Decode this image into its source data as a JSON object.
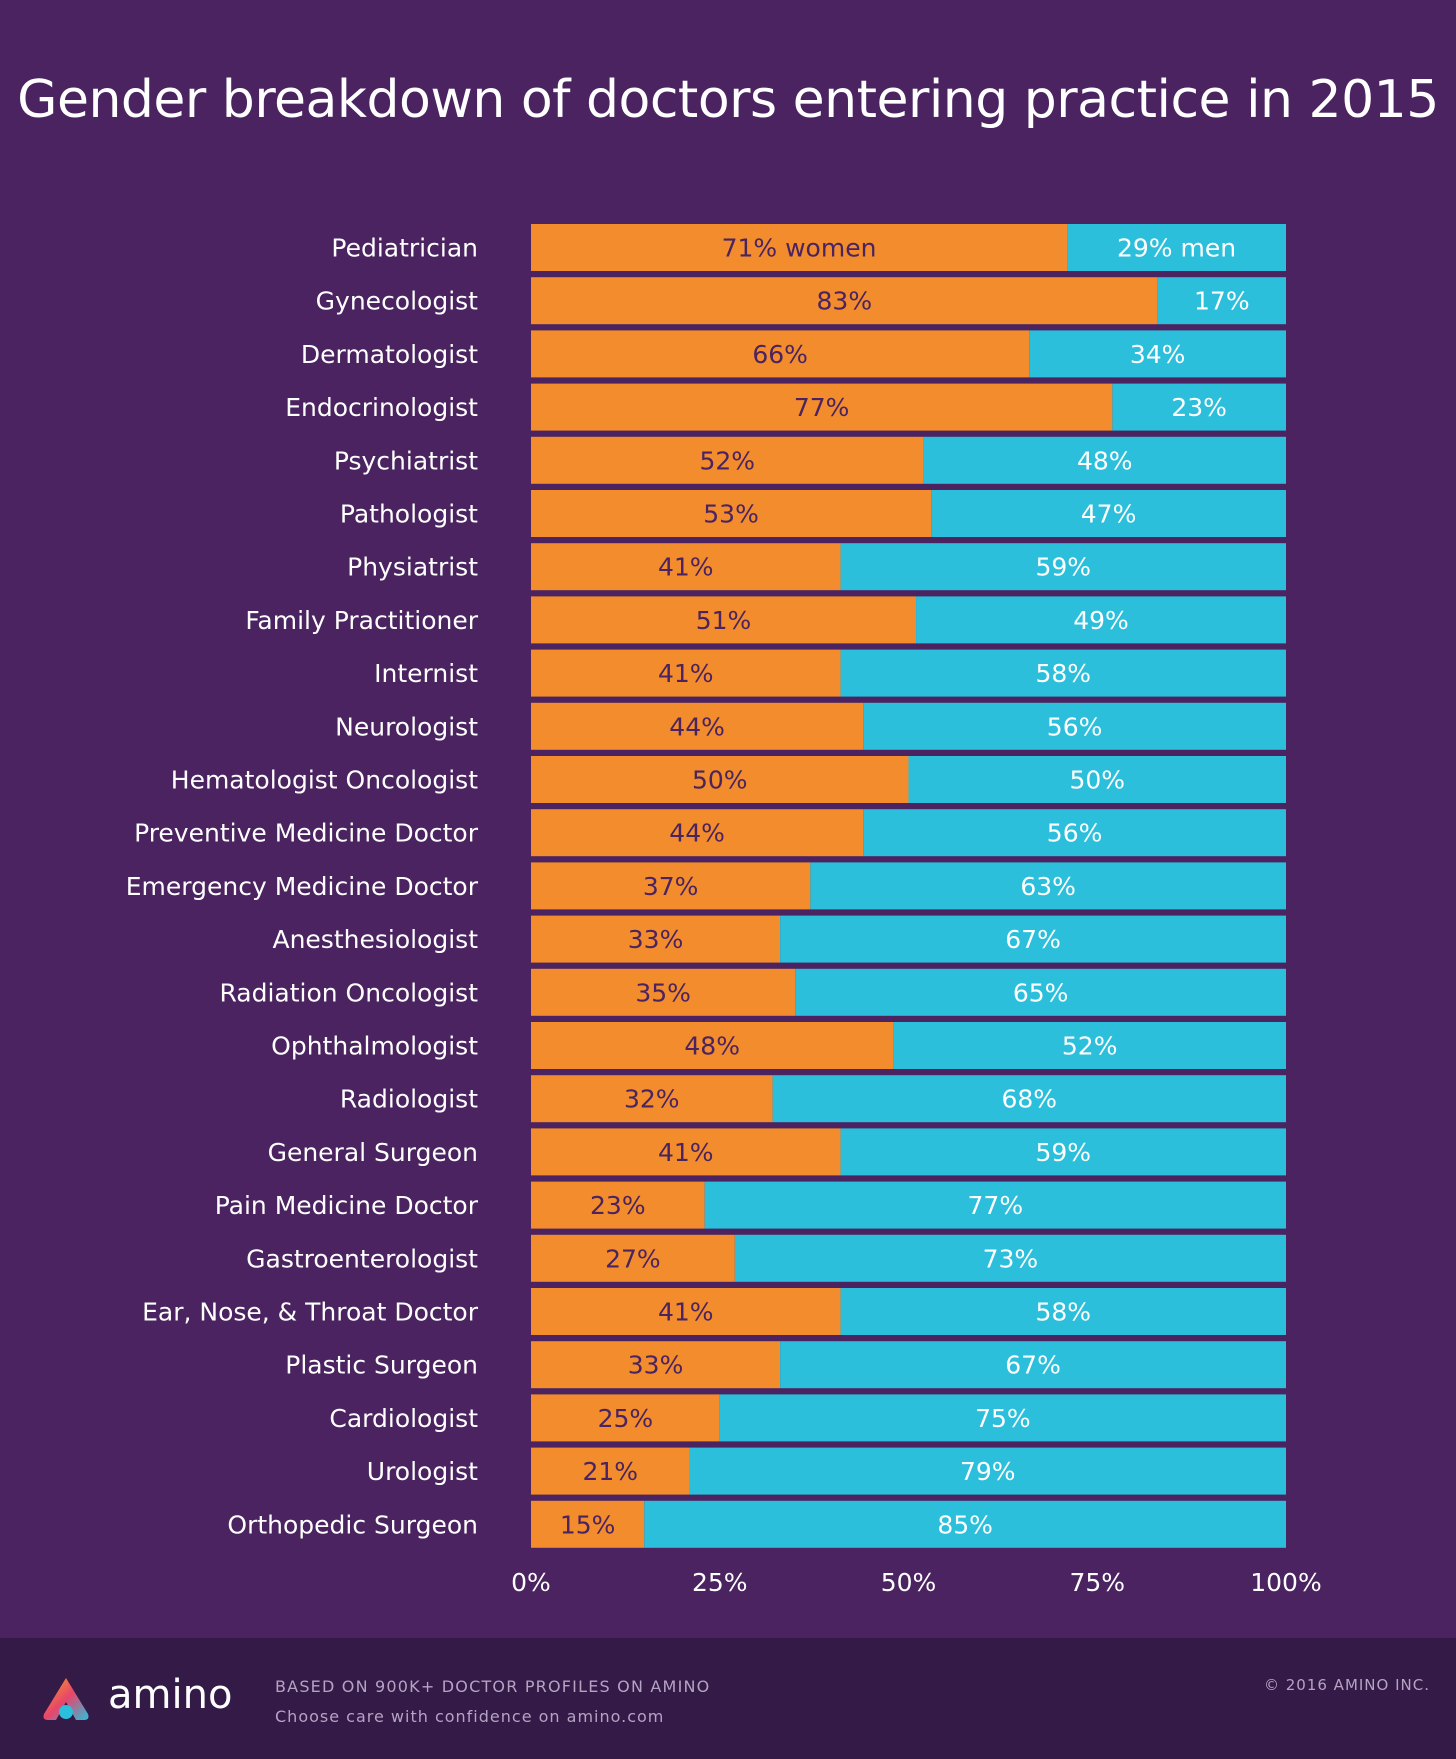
{
  "title": "Gender breakdown of doctors entering practice in 2015",
  "colors": {
    "background": "#4a2360",
    "women": "#f28c2c",
    "men": "#2bbfdc",
    "footer": "#331a47"
  },
  "chart_data": {
    "type": "bar",
    "orientation": "horizontal",
    "stacked": true,
    "title": "Gender breakdown of doctors entering practice in 2015",
    "categories": [
      "Pediatrician",
      "Gynecologist",
      "Dermatologist",
      "Endocrinologist",
      "Psychiatrist",
      "Pathologist",
      "Physiatrist",
      "Family Practitioner",
      "Internist",
      "Neurologist",
      "Hematologist Oncologist",
      "Preventive Medicine Doctor",
      "Emergency Medicine Doctor",
      "Anesthesiologist",
      "Radiation Oncologist",
      "Ophthalmologist",
      "Radiologist",
      "General Surgeon",
      "Pain Medicine Doctor",
      "Gastroenterologist",
      "Ear, Nose, & Throat Doctor",
      "Plastic Surgeon",
      "Cardiologist",
      "Urologist",
      "Orthopedic Surgeon"
    ],
    "series": [
      {
        "name": "women",
        "color": "#f28c2c",
        "values": [
          71,
          83,
          66,
          77,
          52,
          53,
          41,
          51,
          41,
          44,
          50,
          44,
          37,
          33,
          35,
          48,
          32,
          41,
          23,
          27,
          41,
          33,
          25,
          21,
          15
        ]
      },
      {
        "name": "men",
        "color": "#2bbfdc",
        "values": [
          29,
          17,
          34,
          23,
          48,
          47,
          59,
          49,
          58,
          56,
          50,
          56,
          63,
          67,
          65,
          52,
          68,
          59,
          77,
          73,
          58,
          67,
          75,
          79,
          85
        ]
      }
    ],
    "first_row_labels": {
      "women": "71%  women",
      "men": "29%  men"
    },
    "xlim": [
      0,
      100
    ],
    "xticks": [
      "0%",
      "25%",
      "50%",
      "75%",
      "100%"
    ],
    "xlabel": "",
    "ylabel": ""
  },
  "footer": {
    "brand": "amino",
    "source": "BASED ON 900K+ DOCTOR PROFILES ON AMINO",
    "tagline": "Choose care with confidence on amino.com",
    "copyright": "© 2016 AMINO INC."
  }
}
